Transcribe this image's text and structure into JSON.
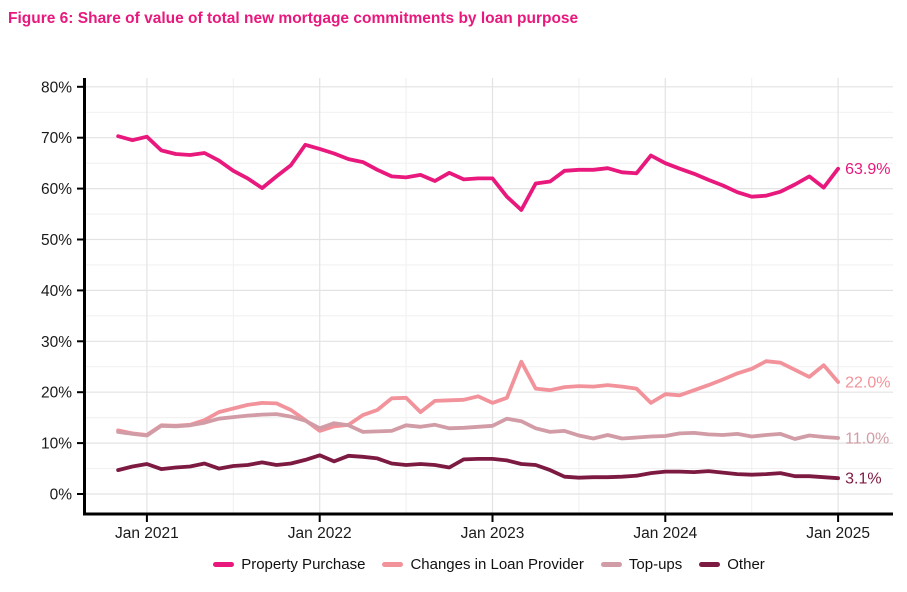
{
  "figure": {
    "title": "Figure 6:  Share of value of total new mortgage commitments by loan purpose",
    "title_color": "#e8187d"
  },
  "chart_data": {
    "type": "line",
    "title": "Figure 6: Share of value of total new mortgage commitments by loan purpose",
    "xlabel": "",
    "ylabel": "",
    "ylim": [
      0,
      80
    ],
    "y_tick_labels": [
      "0%",
      "10%",
      "20%",
      "30%",
      "40%",
      "50%",
      "60%",
      "70%",
      "80%"
    ],
    "y_tick_values": [
      0,
      10,
      20,
      30,
      40,
      50,
      60,
      70,
      80
    ],
    "minor_grid_step": 5,
    "grid": "on",
    "legend_position": "bottom",
    "x_tick_labels": [
      "Jan 2021",
      "Jan 2022",
      "Jan 2023",
      "Jan 2024",
      "Jan 2025"
    ],
    "x_tick_month_index": [
      2,
      14,
      26,
      38,
      50
    ],
    "x_minor_month_index": [
      8,
      20,
      32,
      44
    ],
    "x_labels": [
      "Nov 2020",
      "Dec 2020",
      "Jan 2021",
      "Feb 2021",
      "Mar 2021",
      "Apr 2021",
      "May 2021",
      "Jun 2021",
      "Jul 2021",
      "Aug 2021",
      "Sep 2021",
      "Oct 2021",
      "Nov 2021",
      "Dec 2021",
      "Jan 2022",
      "Feb 2022",
      "Mar 2022",
      "Apr 2022",
      "May 2022",
      "Jun 2022",
      "Jul 2022",
      "Aug 2022",
      "Sep 2022",
      "Oct 2022",
      "Nov 2022",
      "Dec 2022",
      "Jan 2023",
      "Feb 2023",
      "Mar 2023",
      "Apr 2023",
      "May 2023",
      "Jun 2023",
      "Jul 2023",
      "Aug 2023",
      "Sep 2023",
      "Oct 2023",
      "Nov 2023",
      "Dec 2023",
      "Jan 2024",
      "Feb 2024",
      "Mar 2024",
      "Apr 2024",
      "May 2024",
      "Jun 2024",
      "Jul 2024",
      "Aug 2024",
      "Sep 2024",
      "Oct 2024",
      "Nov 2024",
      "Dec 2024",
      "Jan 2025"
    ],
    "series": [
      {
        "name": "Property Purchase",
        "color": "#e8187d",
        "end_label": "63.9%",
        "values": [
          70.3,
          69.5,
          70.2,
          67.5,
          66.8,
          66.6,
          67.0,
          65.5,
          63.5,
          62.0,
          60.1,
          62.4,
          64.6,
          68.6,
          67.8,
          66.9,
          65.8,
          65.2,
          63.7,
          62.4,
          62.2,
          62.7,
          61.5,
          63.1,
          61.8,
          62.0,
          62.0,
          58.4,
          55.8,
          61.0,
          61.4,
          63.5,
          63.7,
          63.7,
          64.0,
          63.2,
          63.0,
          66.5,
          65.0,
          63.9,
          62.9,
          61.7,
          60.6,
          59.3,
          58.4,
          58.6,
          59.4,
          60.8,
          62.4,
          60.2,
          63.9
        ]
      },
      {
        "name": "Changes in Loan Provider",
        "color": "#f2939b",
        "end_label": "22.0%",
        "values": [
          12.5,
          11.9,
          11.6,
          13.5,
          13.4,
          13.6,
          14.5,
          16.1,
          16.8,
          17.5,
          17.9,
          17.8,
          16.5,
          14.5,
          12.4,
          13.3,
          13.6,
          15.5,
          16.5,
          18.8,
          18.9,
          16.1,
          18.3,
          18.4,
          18.5,
          19.2,
          17.9,
          18.9,
          26.0,
          20.7,
          20.4,
          21.0,
          21.2,
          21.1,
          21.4,
          21.1,
          20.7,
          17.9,
          19.6,
          19.4,
          20.4,
          21.4,
          22.5,
          23.7,
          24.6,
          26.1,
          25.8,
          24.4,
          23.0,
          25.3,
          22.0
        ]
      },
      {
        "name": "Top-ups",
        "color": "#d19ca5",
        "end_label": "11.0%",
        "values": [
          12.2,
          11.8,
          11.5,
          13.4,
          13.3,
          13.5,
          14.0,
          14.8,
          15.1,
          15.4,
          15.6,
          15.7,
          15.2,
          14.4,
          12.9,
          13.9,
          13.5,
          12.2,
          12.3,
          12.4,
          13.5,
          13.2,
          13.6,
          12.9,
          13.0,
          13.2,
          13.4,
          14.8,
          14.3,
          12.9,
          12.2,
          12.4,
          11.5,
          10.9,
          11.6,
          10.9,
          11.1,
          11.3,
          11.4,
          11.9,
          12.0,
          11.7,
          11.6,
          11.8,
          11.3,
          11.6,
          11.8,
          10.8,
          11.5,
          11.2,
          11.0
        ]
      },
      {
        "name": "Other",
        "color": "#7d1a42",
        "end_label": "3.1%",
        "values": [
          4.7,
          5.4,
          5.9,
          4.9,
          5.2,
          5.4,
          6.0,
          5.0,
          5.5,
          5.7,
          6.2,
          5.7,
          6.0,
          6.7,
          7.6,
          6.4,
          7.5,
          7.3,
          7.0,
          6.0,
          5.7,
          5.9,
          5.7,
          5.2,
          6.8,
          6.9,
          6.9,
          6.6,
          5.9,
          5.7,
          4.7,
          3.4,
          3.2,
          3.3,
          3.3,
          3.4,
          3.6,
          4.1,
          4.4,
          4.4,
          4.3,
          4.5,
          4.2,
          3.9,
          3.8,
          3.9,
          4.1,
          3.5,
          3.5,
          3.3,
          3.1
        ]
      }
    ],
    "colors": {
      "axis": "#000000",
      "tick_text": "#1a1a1a",
      "grid_major": "#e3e3e3",
      "grid_minor": "#f1f1f1"
    }
  }
}
